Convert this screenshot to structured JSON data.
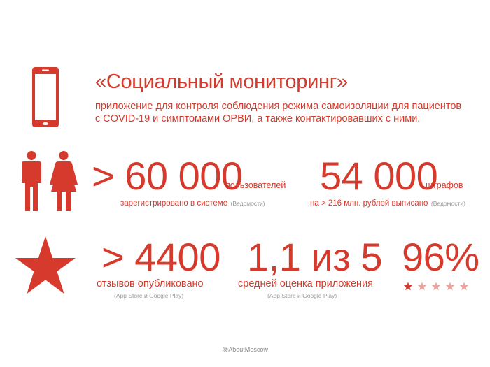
{
  "header": {
    "title": "«Социальный мониторинг»",
    "subtitle_line1": "приложение для контроля соблюдения режима самоизоляции для пациентов",
    "subtitle_line2": "с COVID-19 и симптомами ОРВИ, а также контактировавших с ними."
  },
  "stats": {
    "users": {
      "value": "> 60 000",
      "unit": "пользователей",
      "caption": "зарегистрировано в системе",
      "source": "(Ведомости)"
    },
    "fines": {
      "value": "54 000",
      "unit": "штрафов",
      "caption": "на > 216 млн. рублей выписано",
      "source": "(Ведомости)"
    },
    "reviews": {
      "value": "> 4400",
      "caption": "отзывов опубликовано",
      "source": "(App Store и Google Play)"
    },
    "rating": {
      "value": "1,1 из 5",
      "caption": "средней оценка приложения",
      "source": "(App Store и Google Play)"
    },
    "percent": {
      "value": "96%",
      "stars_filled": 1,
      "stars_total": 5
    }
  },
  "icons": [
    "smartphone-icon",
    "people-icon",
    "star-icon"
  ],
  "colors": {
    "accent": "#d63a2c",
    "muted_star": "#eba39c",
    "source_gray": "#999999"
  },
  "footer": {
    "credit": "@AboutMoscow"
  }
}
